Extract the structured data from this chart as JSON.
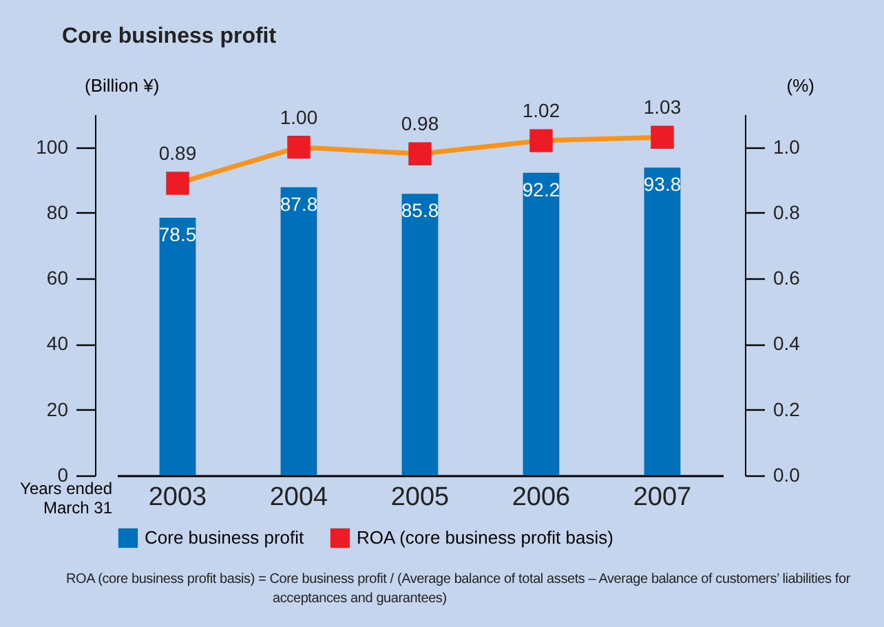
{
  "chart_data": {
    "type": "bar",
    "title": "Core business profit",
    "xlabel": "Years ended March 31",
    "ylabel": "(Billion ¥)",
    "y2label": "(%)",
    "categories": [
      "2003",
      "2004",
      "2005",
      "2006",
      "2007"
    ],
    "series": [
      {
        "name": "Core business profit",
        "color": "#0070bb",
        "values": [
          78.5,
          87.8,
          85.8,
          92.2,
          93.8
        ],
        "value_labels": [
          "78.5",
          "87.8",
          "85.8",
          "92.2",
          "93.8"
        ]
      },
      {
        "name": "ROA (core business profit basis)",
        "type": "line",
        "axis": "y2",
        "color": "#ed1c24",
        "values": [
          0.89,
          1.0,
          0.98,
          1.02,
          1.03
        ],
        "value_labels": [
          "0.89",
          "1.00",
          "0.98",
          "1.02",
          "1.03"
        ]
      }
    ],
    "ylim": [
      0,
      110
    ],
    "yticks": [
      0,
      20,
      40,
      60,
      80,
      100
    ],
    "y2lim": [
      0,
      1.1
    ],
    "y2ticks": [
      {
        "value": 0,
        "label": "0.0"
      },
      {
        "value": 0.2,
        "label": "0.2"
      },
      {
        "value": 0.4,
        "label": "0.4"
      },
      {
        "value": 0.6,
        "label": "0.6"
      },
      {
        "value": 0.8,
        "label": "0.8"
      },
      {
        "value": 1,
        "label": "1.0"
      }
    ],
    "marker": "square",
    "legend": "bottom",
    "grid": false,
    "annotations": [
      "ROA (core business profit basis) = Core business profit / (Average balance of total assets – Average balance of customers’ liabilities for acceptances and guarantees)"
    ]
  }
}
